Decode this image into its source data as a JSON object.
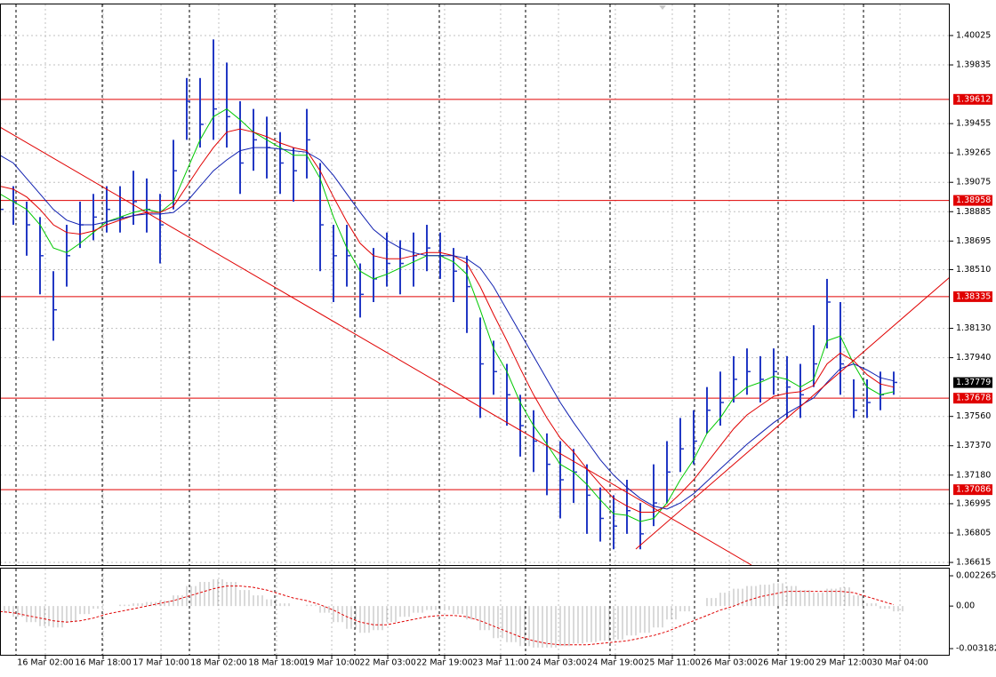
{
  "chart_data": [
    {
      "type": "ohlc",
      "bar_color": "#2238c4",
      "xlim": [
        0,
        71.2
      ],
      "xticks": [
        {
          "value": 3.4,
          "label": "16 Mar 02:00"
        },
        {
          "value": 7.73,
          "label": "16 Mar 18:00"
        },
        {
          "value": 12.07,
          "label": "17 Mar 10:00"
        },
        {
          "value": 16.4,
          "label": "18 Mar 02:00"
        },
        {
          "value": 20.73,
          "label": "18 Mar 18:00"
        },
        {
          "value": 24.87,
          "label": "19 Mar 10:00"
        },
        {
          "value": 29.07,
          "label": "22 Mar 03:00"
        },
        {
          "value": 33.33,
          "label": "22 Mar 19:00"
        },
        {
          "value": 37.53,
          "label": "23 Mar 11:00"
        },
        {
          "value": 41.87,
          "label": "24 Mar 03:00"
        },
        {
          "value": 46.13,
          "label": "24 Mar 19:00"
        },
        {
          "value": 50.4,
          "label": "25 Mar 11:00"
        },
        {
          "value": 54.67,
          "label": "26 Mar 03:00"
        },
        {
          "value": 58.93,
          "label": "26 Mar 19:00"
        },
        {
          "value": 63.27,
          "label": "29 Mar 12:00"
        },
        {
          "value": 67.47,
          "label": "30 Mar 04:00"
        }
      ],
      "ylim": [
        1.36598,
        1.40255
      ],
      "yticks": [
        1.40025,
        1.39835,
        1.39455,
        1.39265,
        1.39075,
        1.38885,
        1.38695,
        {
          "value": 1.3851,
          "label": "1.38510"
        },
        {
          "value": 1.3813,
          "label": "1.38130"
        },
        {
          "value": 1.3794,
          "label": "1.37940"
        },
        {
          "value": 1.3756,
          "label": "1.37560"
        },
        {
          "value": 1.3737,
          "label": "1.37370"
        },
        {
          "value": 1.3718,
          "label": "1.37180"
        },
        1.36995,
        1.36805,
        1.36615
      ],
      "grid": true,
      "high": [
        1.3905,
        1.3905,
        1.3895,
        1.3885,
        1.385,
        1.388,
        1.3895,
        1.39,
        1.3905,
        1.3905,
        1.3915,
        1.391,
        1.39,
        1.3935,
        1.3975,
        1.3975,
        1.4,
        1.3985,
        1.396,
        1.3955,
        1.395,
        1.394,
        1.393,
        1.3955,
        1.392,
        1.388,
        1.388,
        1.3855,
        1.3865,
        1.3875,
        1.387,
        1.3875,
        1.388,
        1.3875,
        1.3865,
        1.386,
        1.382,
        1.3805,
        1.379,
        1.377,
        1.376,
        1.3745,
        1.374,
        1.3735,
        1.3725,
        1.371,
        1.3705,
        1.3715,
        1.37,
        1.3725,
        1.374,
        1.3755,
        1.376,
        1.3775,
        1.3785,
        1.3795,
        1.38,
        1.3795,
        1.38,
        1.3795,
        1.379,
        1.3815,
        1.3845,
        1.383,
        1.378,
        1.378,
        1.3785,
        1.3785
      ],
      "low": [
        1.387,
        1.388,
        1.386,
        1.3835,
        1.3805,
        1.384,
        1.3865,
        1.387,
        1.3875,
        1.3875,
        1.388,
        1.3875,
        1.3855,
        1.389,
        1.3935,
        1.393,
        1.3935,
        1.393,
        1.39,
        1.3915,
        1.391,
        1.39,
        1.3895,
        1.391,
        1.385,
        1.383,
        1.384,
        1.382,
        1.383,
        1.384,
        1.3835,
        1.384,
        1.385,
        1.3845,
        1.383,
        1.381,
        1.3755,
        1.377,
        1.375,
        1.373,
        1.372,
        1.3705,
        1.369,
        1.37,
        1.368,
        1.3675,
        1.367,
        1.368,
        1.367,
        1.3685,
        1.37,
        1.372,
        1.3725,
        1.3745,
        1.375,
        1.3765,
        1.377,
        1.3765,
        1.377,
        1.3755,
        1.3755,
        1.3775,
        1.38,
        1.377,
        1.3755,
        1.3755,
        1.376,
        1.377
      ],
      "close": [
        1.389,
        1.3895,
        1.388,
        1.386,
        1.3825,
        1.386,
        1.388,
        1.3885,
        1.389,
        1.3885,
        1.3895,
        1.389,
        1.388,
        1.3915,
        1.396,
        1.3945,
        1.3955,
        1.395,
        1.392,
        1.3935,
        1.393,
        1.392,
        1.3915,
        1.3935,
        1.388,
        1.386,
        1.386,
        1.3835,
        1.3845,
        1.3855,
        1.3855,
        1.386,
        1.3865,
        1.386,
        1.385,
        1.384,
        1.379,
        1.3785,
        1.377,
        1.375,
        1.374,
        1.3725,
        1.3715,
        1.372,
        1.3705,
        1.369,
        1.3685,
        1.3695,
        1.368,
        1.37,
        1.372,
        1.3735,
        1.374,
        1.376,
        1.3765,
        1.378,
        1.3785,
        1.378,
        1.3785,
        1.3775,
        1.377,
        1.379,
        1.383,
        1.379,
        1.376,
        1.3765,
        1.377,
        1.3778
      ],
      "series": [
        {
          "color": "#00c800",
          "values": [
            1.39,
            1.3895,
            1.389,
            1.388,
            1.3865,
            1.3862,
            1.3868,
            1.3875,
            1.3882,
            1.3885,
            1.3888,
            1.389,
            1.3888,
            1.3895,
            1.3915,
            1.3935,
            1.395,
            1.3955,
            1.3948,
            1.394,
            1.3935,
            1.393,
            1.3925,
            1.3925,
            1.391,
            1.3885,
            1.3865,
            1.385,
            1.3845,
            1.3848,
            1.3852,
            1.3856,
            1.386,
            1.386,
            1.3856,
            1.3848,
            1.3825,
            1.38,
            1.3785,
            1.3765,
            1.375,
            1.3738,
            1.3725,
            1.372,
            1.3712,
            1.3702,
            1.3693,
            1.3692,
            1.3688,
            1.369,
            1.37,
            1.3715,
            1.3728,
            1.3745,
            1.3755,
            1.3768,
            1.3775,
            1.3778,
            1.3782,
            1.378,
            1.3775,
            1.378,
            1.3805,
            1.3808,
            1.379,
            1.3775,
            1.377,
            1.3772
          ]
        },
        {
          "color": "#e00000",
          "values": [
            1.3905,
            1.3903,
            1.3898,
            1.389,
            1.388,
            1.3875,
            1.3874,
            1.3876,
            1.388,
            1.3883,
            1.3886,
            1.3888,
            1.3888,
            1.3892,
            1.3905,
            1.3918,
            1.393,
            1.394,
            1.3942,
            1.394,
            1.3937,
            1.3933,
            1.393,
            1.3928,
            1.3915,
            1.3898,
            1.3882,
            1.3868,
            1.386,
            1.3858,
            1.3858,
            1.386,
            1.3862,
            1.3862,
            1.386,
            1.3855,
            1.384,
            1.3822,
            1.3805,
            1.3787,
            1.377,
            1.3755,
            1.3742,
            1.3733,
            1.3722,
            1.3712,
            1.3703,
            1.3698,
            1.3694,
            1.3694,
            1.3698,
            1.3706,
            1.3715,
            1.3726,
            1.3737,
            1.3748,
            1.3757,
            1.3763,
            1.3769,
            1.3771,
            1.3772,
            1.3776,
            1.379,
            1.3797,
            1.3792,
            1.3783,
            1.3777,
            1.3775
          ]
        },
        {
          "color": "#1020b0",
          "values": [
            1.3925,
            1.392,
            1.391,
            1.39,
            1.389,
            1.3883,
            1.388,
            1.388,
            1.3882,
            1.3884,
            1.3886,
            1.3887,
            1.3887,
            1.3888,
            1.3895,
            1.3905,
            1.3915,
            1.3922,
            1.3928,
            1.393,
            1.393,
            1.3929,
            1.3928,
            1.3927,
            1.3922,
            1.3912,
            1.39,
            1.3888,
            1.3877,
            1.387,
            1.3865,
            1.3862,
            1.386,
            1.386,
            1.386,
            1.3858,
            1.3852,
            1.384,
            1.3825,
            1.381,
            1.3795,
            1.378,
            1.3765,
            1.3752,
            1.374,
            1.3728,
            1.3718,
            1.371,
            1.3703,
            1.3698,
            1.3696,
            1.37,
            1.3706,
            1.3714,
            1.3722,
            1.373,
            1.3738,
            1.3745,
            1.3752,
            1.3758,
            1.3763,
            1.3768,
            1.3778,
            1.3787,
            1.379,
            1.3786,
            1.3781,
            1.3779
          ]
        }
      ],
      "levels": [
        1.39612,
        1.38958,
        1.38335,
        1.37678,
        1.37086
      ],
      "level_color": "#e00000",
      "current_price": 1.37779
    },
    {
      "type": "indicator",
      "color": "#b4b4b4",
      "ylim": [
        -0.00371,
        0.0028
      ],
      "yticks": [
        0.002265,
        {
          "value": 0,
          "label": "0.00"
        },
        -0.003182
      ],
      "values": [
        -0.0005,
        -0.0008,
        -0.0012,
        -0.0015,
        -0.0016,
        -0.0012,
        -0.0006,
        -0.0002,
        0,
        0.0001,
        0.0002,
        0.0003,
        0.0004,
        0.0008,
        0.0015,
        0.0018,
        0.002,
        0.0018,
        0.0012,
        0.0008,
        0.0005,
        0.0002,
        0,
        0.0001,
        -0.0005,
        -0.0012,
        -0.0017,
        -0.002,
        -0.0018,
        -0.0012,
        -0.0008,
        -0.0005,
        -0.0003,
        -0.0003,
        -0.0006,
        -0.001,
        -0.0018,
        -0.0024,
        -0.0027,
        -0.003,
        -0.0031,
        -0.0031,
        -0.003,
        -0.0028,
        -0.0027,
        -0.0026,
        -0.0025,
        -0.0022,
        -0.002,
        -0.0016,
        -0.001,
        -0.0004,
        0,
        0.0006,
        0.001,
        0.0013,
        0.0015,
        0.0016,
        0.0017,
        0.0015,
        0.0012,
        0.001,
        0.0013,
        0.0014,
        0.0008,
        0.0002,
        -0.0002,
        -0.0004
      ],
      "signal": {
        "color": "#e00000",
        "values": [
          -0.0004,
          -0.0005,
          -0.0007,
          -0.0009,
          -0.0011,
          -0.0012,
          -0.0011,
          -0.0009,
          -0.0006,
          -0.0004,
          -0.0002,
          0,
          0.0002,
          0.0004,
          0.0007,
          0.001,
          0.0013,
          0.0015,
          0.0015,
          0.0014,
          0.0012,
          0.0009,
          0.0006,
          0.0004,
          0.0001,
          -0.0003,
          -0.0008,
          -0.0012,
          -0.0014,
          -0.0014,
          -0.0012,
          -0.001,
          -0.0008,
          -0.0007,
          -0.0007,
          -0.0008,
          -0.0011,
          -0.0015,
          -0.0019,
          -0.0023,
          -0.0026,
          -0.0028,
          -0.0029,
          -0.0029,
          -0.0029,
          -0.0028,
          -0.0027,
          -0.0026,
          -0.0024,
          -0.0022,
          -0.0019,
          -0.0015,
          -0.0011,
          -0.0007,
          -0.0003,
          0,
          0.0004,
          0.0007,
          0.0009,
          0.0011,
          0.0011,
          0.0011,
          0.0011,
          0.0011,
          0.001,
          0.0007,
          0.0004,
          0.0001
        ]
      }
    }
  ]
}
